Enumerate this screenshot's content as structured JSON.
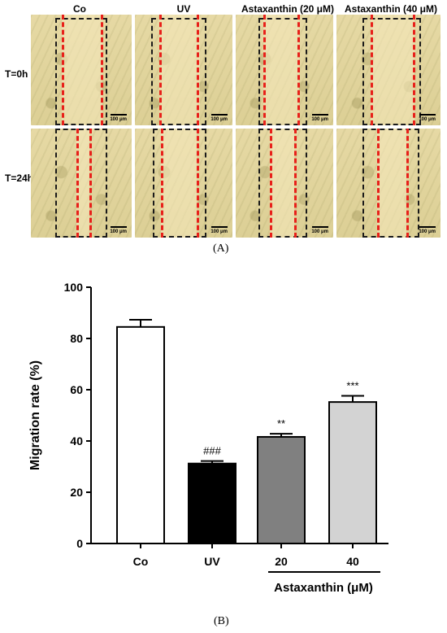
{
  "panel_a": {
    "label": "(A)",
    "columns": [
      "Co",
      "UV",
      "Astaxanthin (20 μM)",
      "Astaxanthin (40 μM)"
    ],
    "rows": [
      "T=0h",
      "T=24h"
    ],
    "scale_label": "100 μm"
  },
  "panel_b": {
    "label": "(B)",
    "bracket_label": "Astaxanthin (μM)"
  },
  "chart_data": {
    "type": "bar",
    "categories": [
      "Co",
      "UV",
      "20",
      "40"
    ],
    "values": [
      84.5,
      31.2,
      41.6,
      55.2
    ],
    "errors": [
      2.8,
      1.0,
      1.2,
      2.4
    ],
    "annotations": [
      "",
      "###",
      "**",
      "***"
    ],
    "bar_colors": [
      "#ffffff",
      "#000000",
      "#808080",
      "#d3d3d3"
    ],
    "xlabel": "",
    "ylabel": "Migration rate (%)",
    "ylim": [
      0,
      100
    ],
    "yticks": [
      0,
      20,
      40,
      60,
      80,
      100
    ],
    "grid": false
  }
}
